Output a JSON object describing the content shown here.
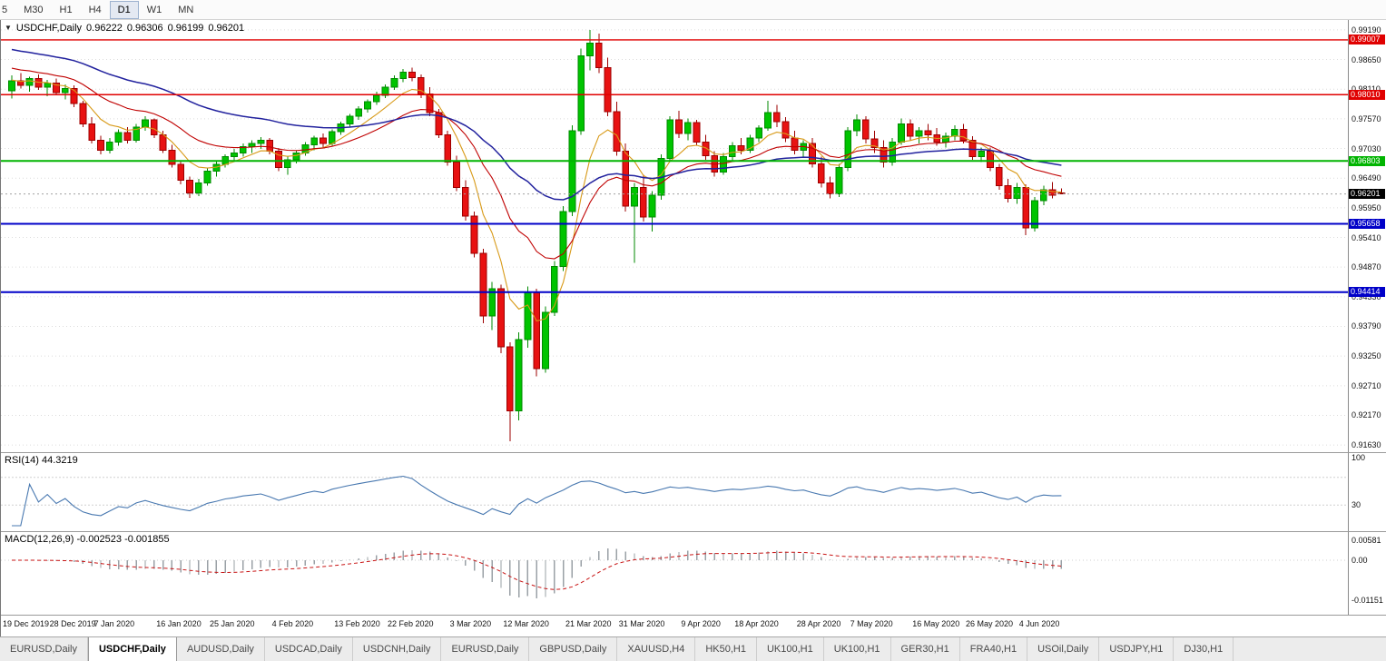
{
  "toolbar": {
    "timeframes": [
      {
        "label": "5",
        "active": false
      },
      {
        "label": "M30",
        "active": false
      },
      {
        "label": "H1",
        "active": false
      },
      {
        "label": "H4",
        "active": false
      },
      {
        "label": "D1",
        "active": true
      },
      {
        "label": "W1",
        "active": false
      },
      {
        "label": "MN",
        "active": false
      }
    ]
  },
  "chart": {
    "marker": "▼",
    "symbol": "USDCHF,Daily",
    "ohlc": {
      "open": "0.96222",
      "high": "0.96306",
      "low": "0.96199",
      "close": "0.96201"
    },
    "current_price": 0.96201,
    "current_price_label": "0.96201",
    "price_scale": {
      "top": 0.9937,
      "bottom": 0.915,
      "labels": [
        "0.99190",
        "0.98650",
        "0.98110",
        "0.97570",
        "0.97030",
        "0.96490",
        "0.95950",
        "0.95410",
        "0.94870",
        "0.94330",
        "0.93790",
        "0.93250",
        "0.92710",
        "0.92170",
        "0.91630"
      ]
    },
    "h_lines": [
      {
        "value": 0.99007,
        "label": "0.99007",
        "color": "#e00000",
        "width": 1.4
      },
      {
        "value": 0.9801,
        "label": "0.98010",
        "color": "#e00000",
        "width": 1.4
      },
      {
        "value": 0.96803,
        "label": "0.96803",
        "color": "#00b400",
        "width": 2
      },
      {
        "value": 0.95658,
        "label": "0.95658",
        "color": "#0000c8",
        "width": 2
      },
      {
        "value": 0.94414,
        "label": "0.94414",
        "color": "#0000c8",
        "width": 2
      }
    ],
    "moving_averages": [
      {
        "name": "ma-fast",
        "period": 7,
        "seed": 0.9828,
        "color": "#d89a18",
        "width": 1.1
      },
      {
        "name": "ma-mid",
        "period": 18,
        "seed": 0.9852,
        "color": "#c00000",
        "width": 1.1
      },
      {
        "name": "ma-slow",
        "period": 42,
        "seed": 0.9886,
        "color": "#22229e",
        "width": 1.5
      }
    ],
    "colors": {
      "up": "#00c400",
      "up_edge": "#008a00",
      "down": "#e81212",
      "down_edge": "#9c0000",
      "grid": "#dcdcdc",
      "current_line": "#a0a0a0",
      "current_badge": "#000000"
    },
    "x_ticks": [
      {
        "label": "19 Dec 2019",
        "bar": 0
      },
      {
        "label": "28 Dec 2019",
        "bar": 7
      },
      {
        "label": "7 Jan 2020",
        "bar": 12
      },
      {
        "label": "16 Jan 2020",
        "bar": 19
      },
      {
        "label": "25 Jan 2020",
        "bar": 25
      },
      {
        "label": "4 Feb 2020",
        "bar": 32
      },
      {
        "label": "13 Feb 2020",
        "bar": 39
      },
      {
        "label": "22 Feb 2020",
        "bar": 45
      },
      {
        "label": "3 Mar 2020",
        "bar": 52
      },
      {
        "label": "12 Mar 2020",
        "bar": 58
      },
      {
        "label": "21 Mar 2020",
        "bar": 65
      },
      {
        "label": "31 Mar 2020",
        "bar": 71
      },
      {
        "label": "9 Apr 2020",
        "bar": 78
      },
      {
        "label": "18 Apr 2020",
        "bar": 84
      },
      {
        "label": "28 Apr 2020",
        "bar": 91
      },
      {
        "label": "7 May 2020",
        "bar": 97
      },
      {
        "label": "16 May 2020",
        "bar": 104
      },
      {
        "label": "26 May 2020",
        "bar": 110
      },
      {
        "label": "4 Jun 2020",
        "bar": 116
      }
    ],
    "candles": [
      [
        0.9808,
        0.9836,
        0.9794,
        0.9826
      ],
      [
        0.9826,
        0.984,
        0.9812,
        0.9818
      ],
      [
        0.9818,
        0.9834,
        0.9806,
        0.983
      ],
      [
        0.983,
        0.9838,
        0.981,
        0.9815
      ],
      [
        0.9815,
        0.9828,
        0.9798,
        0.9822
      ],
      [
        0.9822,
        0.983,
        0.98,
        0.9805
      ],
      [
        0.9805,
        0.982,
        0.9792,
        0.9812
      ],
      [
        0.9812,
        0.9818,
        0.9778,
        0.9785
      ],
      [
        0.9785,
        0.979,
        0.9742,
        0.9748
      ],
      [
        0.9748,
        0.976,
        0.9712,
        0.9718
      ],
      [
        0.9718,
        0.9726,
        0.9692,
        0.97
      ],
      [
        0.97,
        0.9722,
        0.9694,
        0.9715
      ],
      [
        0.9715,
        0.9738,
        0.9708,
        0.9732
      ],
      [
        0.9732,
        0.9742,
        0.9712,
        0.9718
      ],
      [
        0.9718,
        0.9748,
        0.9714,
        0.9742
      ],
      [
        0.9742,
        0.9762,
        0.9735,
        0.9755
      ],
      [
        0.9755,
        0.9758,
        0.9722,
        0.9728
      ],
      [
        0.9728,
        0.9735,
        0.9695,
        0.97
      ],
      [
        0.97,
        0.971,
        0.9668,
        0.9674
      ],
      [
        0.9674,
        0.968,
        0.9638,
        0.9645
      ],
      [
        0.9645,
        0.9652,
        0.9613,
        0.9622
      ],
      [
        0.9622,
        0.9648,
        0.9616,
        0.964
      ],
      [
        0.964,
        0.9668,
        0.9635,
        0.9662
      ],
      [
        0.9662,
        0.968,
        0.9652,
        0.9674
      ],
      [
        0.9674,
        0.9692,
        0.9668,
        0.9688
      ],
      [
        0.9688,
        0.9702,
        0.9678,
        0.9695
      ],
      [
        0.9695,
        0.9712,
        0.9688,
        0.9706
      ],
      [
        0.9706,
        0.9718,
        0.9695,
        0.9712
      ],
      [
        0.9712,
        0.9724,
        0.9702,
        0.9718
      ],
      [
        0.9718,
        0.9722,
        0.9692,
        0.9698
      ],
      [
        0.9698,
        0.9704,
        0.9662,
        0.9668
      ],
      [
        0.9668,
        0.9688,
        0.9655,
        0.9682
      ],
      [
        0.9682,
        0.97,
        0.9676,
        0.9695
      ],
      [
        0.9695,
        0.9715,
        0.969,
        0.971
      ],
      [
        0.971,
        0.9726,
        0.97,
        0.9722
      ],
      [
        0.9722,
        0.973,
        0.9705,
        0.9712
      ],
      [
        0.9712,
        0.9738,
        0.9708,
        0.9734
      ],
      [
        0.9734,
        0.9752,
        0.9728,
        0.9748
      ],
      [
        0.9748,
        0.9766,
        0.9742,
        0.9762
      ],
      [
        0.9762,
        0.978,
        0.9755,
        0.9775
      ],
      [
        0.9775,
        0.9792,
        0.9768,
        0.9788
      ],
      [
        0.9788,
        0.9806,
        0.9782,
        0.98
      ],
      [
        0.98,
        0.982,
        0.9795,
        0.9815
      ],
      [
        0.9815,
        0.9836,
        0.981,
        0.983
      ],
      [
        0.983,
        0.9848,
        0.9824,
        0.9842
      ],
      [
        0.9842,
        0.985,
        0.9825,
        0.9832
      ],
      [
        0.9832,
        0.9838,
        0.9795,
        0.9802
      ],
      [
        0.9802,
        0.9815,
        0.9762,
        0.9768
      ],
      [
        0.9768,
        0.9775,
        0.9722,
        0.9728
      ],
      [
        0.9728,
        0.9735,
        0.9672,
        0.9678
      ],
      [
        0.9678,
        0.969,
        0.9625,
        0.9632
      ],
      [
        0.9632,
        0.9645,
        0.9572,
        0.958
      ],
      [
        0.958,
        0.9588,
        0.9505,
        0.9512
      ],
      [
        0.9512,
        0.952,
        0.9385,
        0.9398
      ],
      [
        0.9398,
        0.946,
        0.9372,
        0.9448
      ],
      [
        0.9448,
        0.9455,
        0.933,
        0.9342
      ],
      [
        0.9342,
        0.935,
        0.917,
        0.9225
      ],
      [
        0.9225,
        0.9368,
        0.9208,
        0.9355
      ],
      [
        0.9355,
        0.9452,
        0.934,
        0.944
      ],
      [
        0.944,
        0.9448,
        0.9288,
        0.9302
      ],
      [
        0.9302,
        0.9415,
        0.9295,
        0.9405
      ],
      [
        0.9405,
        0.9498,
        0.9398,
        0.9488
      ],
      [
        0.9488,
        0.9598,
        0.948,
        0.9588
      ],
      [
        0.9588,
        0.9745,
        0.958,
        0.9735
      ],
      [
        0.9735,
        0.9885,
        0.9728,
        0.9872
      ],
      [
        0.9872,
        0.9919,
        0.9845,
        0.9895
      ],
      [
        0.9895,
        0.9912,
        0.984,
        0.985
      ],
      [
        0.985,
        0.9868,
        0.9762,
        0.977
      ],
      [
        0.977,
        0.9788,
        0.969,
        0.9698
      ],
      [
        0.9698,
        0.9712,
        0.9588,
        0.9598
      ],
      [
        0.9598,
        0.964,
        0.9495,
        0.9632
      ],
      [
        0.9632,
        0.9655,
        0.957,
        0.9578
      ],
      [
        0.9578,
        0.9625,
        0.9552,
        0.9618
      ],
      [
        0.9618,
        0.9692,
        0.961,
        0.9685
      ],
      [
        0.9685,
        0.9762,
        0.9678,
        0.9755
      ],
      [
        0.9755,
        0.9772,
        0.9722,
        0.973
      ],
      [
        0.973,
        0.9758,
        0.9718,
        0.975
      ],
      [
        0.975,
        0.9755,
        0.9708,
        0.9715
      ],
      [
        0.9715,
        0.9728,
        0.9682,
        0.969
      ],
      [
        0.969,
        0.9698,
        0.9652,
        0.966
      ],
      [
        0.966,
        0.9695,
        0.9655,
        0.9688
      ],
      [
        0.9688,
        0.9715,
        0.968,
        0.9708
      ],
      [
        0.9708,
        0.9722,
        0.9692,
        0.97
      ],
      [
        0.97,
        0.9728,
        0.9695,
        0.9722
      ],
      [
        0.9722,
        0.9745,
        0.9715,
        0.974
      ],
      [
        0.974,
        0.979,
        0.9735,
        0.9768
      ],
      [
        0.9768,
        0.9782,
        0.9742,
        0.9752
      ],
      [
        0.9752,
        0.976,
        0.9715,
        0.9722
      ],
      [
        0.9722,
        0.9735,
        0.9692,
        0.97
      ],
      [
        0.97,
        0.9718,
        0.9688,
        0.9712
      ],
      [
        0.9712,
        0.9722,
        0.9668,
        0.9675
      ],
      [
        0.9675,
        0.9688,
        0.9632,
        0.964
      ],
      [
        0.964,
        0.9652,
        0.9612,
        0.962
      ],
      [
        0.962,
        0.9675,
        0.9615,
        0.9668
      ],
      [
        0.9668,
        0.9742,
        0.9662,
        0.9735
      ],
      [
        0.9735,
        0.9765,
        0.9725,
        0.9755
      ],
      [
        0.9755,
        0.9762,
        0.9712,
        0.972
      ],
      [
        0.972,
        0.9735,
        0.9695,
        0.9705
      ],
      [
        0.9705,
        0.9718,
        0.9668,
        0.9678
      ],
      [
        0.9678,
        0.9722,
        0.9672,
        0.9715
      ],
      [
        0.9715,
        0.9758,
        0.971,
        0.9748
      ],
      [
        0.9748,
        0.9756,
        0.9718,
        0.9725
      ],
      [
        0.9725,
        0.9742,
        0.9712,
        0.9735
      ],
      [
        0.9735,
        0.9748,
        0.9718,
        0.9728
      ],
      [
        0.9728,
        0.974,
        0.9708,
        0.9715
      ],
      [
        0.9715,
        0.9732,
        0.9705,
        0.9725
      ],
      [
        0.9725,
        0.9745,
        0.9718,
        0.9738
      ],
      [
        0.9738,
        0.9748,
        0.9712,
        0.9718
      ],
      [
        0.9718,
        0.9725,
        0.9682,
        0.9688
      ],
      [
        0.9688,
        0.9705,
        0.9678,
        0.9698
      ],
      [
        0.9698,
        0.9705,
        0.9662,
        0.9668
      ],
      [
        0.9668,
        0.9675,
        0.9628,
        0.9635
      ],
      [
        0.9635,
        0.9648,
        0.9605,
        0.9612
      ],
      [
        0.9612,
        0.964,
        0.9602,
        0.9632
      ],
      [
        0.9632,
        0.9638,
        0.9545,
        0.9558
      ],
      [
        0.9558,
        0.9615,
        0.9552,
        0.9608
      ],
      [
        0.9608,
        0.9635,
        0.96,
        0.9628
      ],
      [
        0.9628,
        0.9642,
        0.9612,
        0.9618
      ],
      [
        0.96222,
        0.96306,
        0.96199,
        0.96201
      ]
    ]
  },
  "rsi": {
    "label": "RSI(14) 44.3219",
    "period": 14,
    "color": "#4878b0",
    "axis_labels": [
      {
        "label": "100",
        "value": 100
      },
      {
        "label": "30",
        "value": 30
      }
    ],
    "dashed_levels": [
      70,
      30
    ]
  },
  "macd": {
    "label": "MACD(12,26,9) -0.002523 -0.001855",
    "fast": 12,
    "slow": 26,
    "signal": 9,
    "hist_color": "#9aa0a6",
    "signal_color": "#c81414",
    "scale": {
      "top": 0.0081,
      "bottom": -0.0157
    },
    "axis_labels": [
      {
        "label": "0.00581",
        "value": 0.00581
      },
      {
        "label": "0.00",
        "value": 0
      },
      {
        "label": "-0.01151",
        "value": -0.01151
      }
    ]
  },
  "tabs": [
    {
      "label": "EURUSD,Daily",
      "active": false
    },
    {
      "label": "USDCHF,Daily",
      "active": true
    },
    {
      "label": "AUDUSD,Daily",
      "active": false
    },
    {
      "label": "USDCAD,Daily",
      "active": false
    },
    {
      "label": "USDCNH,Daily",
      "active": false
    },
    {
      "label": "EURUSD,Daily",
      "active": false
    },
    {
      "label": "GBPUSD,Daily",
      "active": false
    },
    {
      "label": "XAUUSD,H4",
      "active": false
    },
    {
      "label": "HK50,H1",
      "active": false
    },
    {
      "label": "UK100,H1",
      "active": false
    },
    {
      "label": "UK100,H1",
      "active": false
    },
    {
      "label": "GER30,H1",
      "active": false
    },
    {
      "label": "FRA40,H1",
      "active": false
    },
    {
      "label": "USOil,Daily",
      "active": false
    },
    {
      "label": "USDJPY,H1",
      "active": false
    },
    {
      "label": "DJ30,H1",
      "active": false
    }
  ]
}
